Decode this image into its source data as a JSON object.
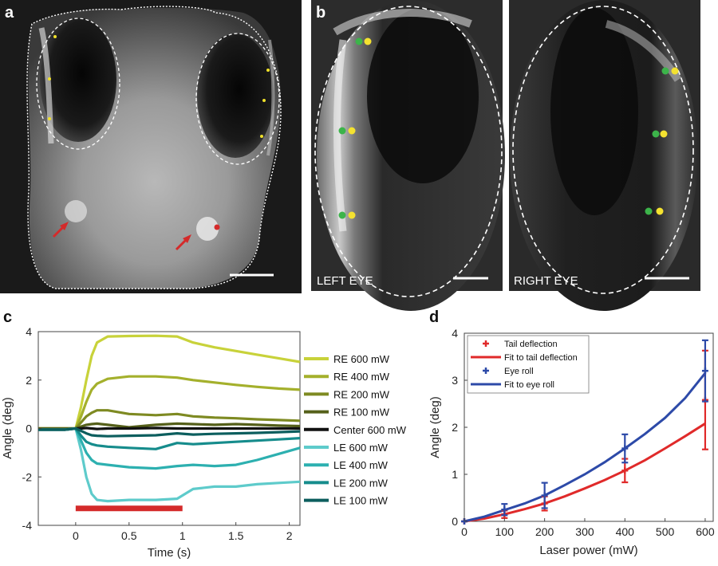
{
  "panels": {
    "a": {
      "letter": "a"
    },
    "b": {
      "letter": "b",
      "left_label": "LEFT EYE",
      "right_label": "RIGHT EYE"
    },
    "c": {
      "letter": "c"
    },
    "d": {
      "letter": "d"
    }
  },
  "chart_data": [
    {
      "panel": "c",
      "type": "line",
      "xlabel": "Time (s)",
      "ylabel": "Angle (deg)",
      "xlim": [
        -0.35,
        2.1
      ],
      "ylim": [
        -4,
        4
      ],
      "xticks": [
        "0",
        "0.5",
        "1",
        "1.5",
        "2"
      ],
      "xtick_values": [
        0,
        0.5,
        1,
        1.5,
        2
      ],
      "yticks": [
        "4",
        "2",
        "0",
        "-2",
        "-4"
      ],
      "ytick_values": [
        4,
        2,
        0,
        -2,
        -4
      ],
      "stimulus_bar": {
        "start": 0,
        "end": 1,
        "y": -3.3,
        "color": "#d42a2a"
      },
      "x": [
        -0.35,
        -0.1,
        0,
        0.05,
        0.1,
        0.15,
        0.2,
        0.3,
        0.5,
        0.75,
        0.95,
        1.1,
        1.3,
        1.5,
        1.7,
        1.9,
        2.1
      ],
      "series": [
        {
          "name": "RE 600 mW",
          "color": "#c8d23a",
          "values": [
            0,
            0,
            0,
            0.9,
            2.0,
            3.0,
            3.55,
            3.8,
            3.82,
            3.83,
            3.8,
            3.55,
            3.35,
            3.2,
            3.05,
            2.9,
            2.75
          ]
        },
        {
          "name": "RE 400 mW",
          "color": "#a4b02c",
          "values": [
            0,
            0,
            0,
            0.5,
            1.1,
            1.6,
            1.85,
            2.05,
            2.15,
            2.15,
            2.1,
            2.0,
            1.9,
            1.8,
            1.72,
            1.65,
            1.6
          ]
        },
        {
          "name": "RE 200 mW",
          "color": "#7e8a22",
          "values": [
            0,
            0,
            0,
            0.25,
            0.5,
            0.65,
            0.75,
            0.75,
            0.6,
            0.55,
            0.6,
            0.5,
            0.45,
            0.42,
            0.38,
            0.35,
            0.32
          ]
        },
        {
          "name": "RE 100 mW",
          "color": "#55601a",
          "values": [
            0,
            0,
            0,
            0.08,
            0.15,
            0.18,
            0.2,
            0.15,
            0.05,
            0.15,
            0.2,
            0.18,
            0.15,
            0.18,
            0.15,
            0.12,
            0.1
          ]
        },
        {
          "name": "Center 600 mW",
          "color": "#111111",
          "values": [
            -0.05,
            -0.05,
            0,
            0,
            0.02,
            0,
            -0.02,
            0,
            0,
            0.02,
            0,
            0,
            0,
            0,
            0,
            0,
            0
          ]
        },
        {
          "name": "LE 600 mW",
          "color": "#5ecbcb",
          "values": [
            -0.05,
            -0.05,
            0,
            -0.9,
            -2.0,
            -2.7,
            -2.95,
            -3.0,
            -2.95,
            -2.95,
            -2.9,
            -2.5,
            -2.4,
            -2.4,
            -2.3,
            -2.25,
            -2.2
          ]
        },
        {
          "name": "LE 400 mW",
          "color": "#2db0b0",
          "values": [
            -0.05,
            -0.05,
            0,
            -0.5,
            -1.0,
            -1.3,
            -1.45,
            -1.5,
            -1.6,
            -1.65,
            -1.55,
            -1.5,
            -1.55,
            -1.5,
            -1.3,
            -1.05,
            -0.8
          ]
        },
        {
          "name": "LE 200 mW",
          "color": "#168c8c",
          "values": [
            -0.05,
            -0.05,
            0,
            -0.3,
            -0.55,
            -0.65,
            -0.7,
            -0.75,
            -0.8,
            -0.85,
            -0.6,
            -0.65,
            -0.6,
            -0.55,
            -0.5,
            -0.45,
            -0.4
          ]
        },
        {
          "name": "LE 100 mW",
          "color": "#0c5e5e",
          "values": [
            -0.05,
            -0.05,
            0,
            -0.1,
            -0.2,
            -0.28,
            -0.3,
            -0.32,
            -0.3,
            -0.28,
            -0.2,
            -0.25,
            -0.22,
            -0.2,
            -0.18,
            -0.15,
            -0.12
          ]
        }
      ]
    },
    {
      "panel": "d",
      "type": "scatter",
      "xlabel": "Laser power (mW)",
      "ylabel": "Angle (deg)",
      "xlim": [
        0,
        620
      ],
      "ylim": [
        0,
        4
      ],
      "xticks": [
        "0",
        "100",
        "200",
        "300",
        "400",
        "500",
        "600"
      ],
      "xtick_values": [
        0,
        100,
        200,
        300,
        400,
        500,
        600
      ],
      "yticks": [
        "0",
        "1",
        "2",
        "3",
        "4"
      ],
      "ytick_values": [
        0,
        1,
        2,
        3,
        4
      ],
      "legend": [
        "Tail deflection",
        "Fit to tail deflection",
        "Eye roll",
        "Fit to eye roll"
      ],
      "legend_position": "top-left",
      "series": [
        {
          "name": "Tail deflection",
          "color": "#e02a2a",
          "x": [
            0,
            100,
            200,
            400,
            600
          ],
          "y": [
            0,
            0.15,
            0.38,
            1.08,
            2.58
          ],
          "err": [
            0,
            0.08,
            0.15,
            0.25,
            1.05
          ]
        },
        {
          "name": "Eye roll",
          "color": "#2d4aa8",
          "x": [
            0,
            100,
            200,
            400,
            600
          ],
          "y": [
            0,
            0.25,
            0.55,
            1.55,
            3.2
          ],
          "err": [
            0,
            0.12,
            0.27,
            0.3,
            0.65
          ]
        }
      ],
      "fits": [
        {
          "name": "Fit to tail deflection",
          "color": "#e02a2a",
          "x": [
            0,
            50,
            100,
            150,
            200,
            250,
            300,
            350,
            400,
            450,
            500,
            550,
            600
          ],
          "y": [
            0,
            0.06,
            0.15,
            0.26,
            0.38,
            0.53,
            0.7,
            0.88,
            1.08,
            1.3,
            1.55,
            1.81,
            2.08
          ]
        },
        {
          "name": "Fit to eye roll",
          "color": "#2d4aa8",
          "x": [
            0,
            50,
            100,
            150,
            200,
            250,
            300,
            350,
            400,
            450,
            500,
            550,
            600
          ],
          "y": [
            0,
            0.1,
            0.24,
            0.38,
            0.55,
            0.77,
            1.0,
            1.26,
            1.55,
            1.86,
            2.2,
            2.62,
            3.15
          ]
        }
      ]
    }
  ]
}
